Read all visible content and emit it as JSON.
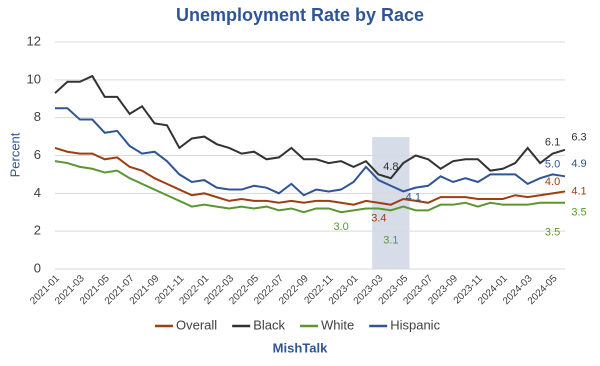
{
  "chart_data": {
    "type": "line",
    "title": "Unemployment Rate by Race",
    "y_label": "Percent",
    "footer": "MishTalk",
    "categories": [
      "2021-01",
      null,
      "2021-03",
      null,
      "2021-05",
      null,
      "2021-07",
      null,
      "2021-09",
      null,
      "2021-11",
      null,
      "2022-01",
      null,
      "2022-03",
      null,
      "2022-05",
      null,
      "2022-07",
      null,
      "2022-09",
      null,
      "2022-11",
      null,
      "2023-01",
      null,
      "2023-03",
      null,
      "2023-05",
      null,
      "2023-07",
      null,
      "2023-09",
      null,
      "2023-11",
      null,
      "2024-01",
      null,
      "2024-03",
      null,
      "2024-05",
      null
    ],
    "ylim": [
      0,
      12
    ],
    "yticks": [
      0,
      2,
      4,
      6,
      8,
      10,
      12
    ],
    "grid": true,
    "legend": "bottom",
    "highlight_range": [
      "2023-03",
      "2023-05"
    ],
    "highlight_color": "#d6dce8",
    "series": [
      {
        "name": "Overall",
        "color": "#9c3f12",
        "values": [
          6.4,
          6.2,
          6.1,
          6.1,
          5.8,
          5.9,
          5.4,
          5.2,
          4.8,
          4.5,
          4.2,
          3.9,
          4.0,
          3.8,
          3.6,
          3.7,
          3.6,
          3.6,
          3.5,
          3.6,
          3.5,
          3.6,
          3.6,
          3.5,
          3.4,
          3.6,
          3.5,
          3.4,
          3.7,
          3.6,
          3.5,
          3.8,
          3.8,
          3.8,
          3.7,
          3.7,
          3.7,
          3.9,
          3.8,
          3.9,
          4.0,
          4.1
        ],
        "value_labels": [
          null,
          null,
          null,
          null,
          null,
          null,
          null,
          null,
          null,
          null,
          null,
          null,
          null,
          null,
          null,
          null,
          null,
          null,
          null,
          null,
          null,
          null,
          null,
          null,
          null,
          null,
          null,
          "3.4",
          null,
          null,
          null,
          null,
          null,
          null,
          null,
          null,
          null,
          null,
          null,
          null,
          "4.0",
          "4.1"
        ]
      },
      {
        "name": "Black",
        "color": "#333333",
        "values": [
          9.3,
          9.9,
          9.9,
          10.2,
          9.1,
          9.1,
          8.2,
          8.6,
          7.7,
          7.6,
          6.4,
          6.9,
          7.0,
          6.6,
          6.4,
          6.1,
          6.2,
          5.8,
          5.9,
          6.4,
          5.8,
          5.8,
          5.6,
          5.7,
          5.4,
          5.7,
          5.0,
          4.8,
          5.6,
          6.0,
          5.8,
          5.3,
          5.7,
          5.8,
          5.8,
          5.2,
          5.3,
          5.6,
          6.4,
          5.6,
          6.1,
          6.3
        ],
        "value_labels": [
          null,
          null,
          null,
          null,
          null,
          null,
          null,
          null,
          null,
          null,
          null,
          null,
          null,
          null,
          null,
          null,
          null,
          null,
          null,
          null,
          null,
          null,
          null,
          null,
          null,
          null,
          null,
          "4.8",
          null,
          null,
          null,
          null,
          null,
          null,
          null,
          null,
          null,
          null,
          null,
          null,
          "6.1",
          "6.3"
        ]
      },
      {
        "name": "White",
        "color": "#5b9632",
        "values": [
          5.7,
          5.6,
          5.4,
          5.3,
          5.1,
          5.2,
          4.8,
          4.5,
          4.2,
          3.9,
          3.6,
          3.3,
          3.4,
          3.3,
          3.2,
          3.3,
          3.2,
          3.3,
          3.1,
          3.2,
          3.0,
          3.2,
          3.2,
          3.0,
          3.1,
          3.2,
          3.2,
          3.1,
          3.3,
          3.1,
          3.1,
          3.4,
          3.4,
          3.5,
          3.3,
          3.5,
          3.4,
          3.4,
          3.4,
          3.5,
          3.5,
          3.5
        ],
        "value_labels": [
          null,
          null,
          null,
          null,
          null,
          null,
          null,
          null,
          null,
          null,
          null,
          null,
          null,
          null,
          null,
          null,
          null,
          null,
          null,
          null,
          null,
          null,
          null,
          "3.0",
          null,
          null,
          null,
          "3.1",
          null,
          null,
          null,
          null,
          null,
          null,
          null,
          null,
          null,
          null,
          null,
          null,
          "3.5",
          "3.5"
        ]
      },
      {
        "name": "Hispanic",
        "color": "#2f5597",
        "values": [
          8.5,
          8.5,
          7.9,
          7.9,
          7.2,
          7.3,
          6.5,
          6.1,
          6.2,
          5.7,
          5.0,
          4.6,
          4.7,
          4.3,
          4.2,
          4.2,
          4.4,
          4.3,
          4.0,
          4.5,
          3.9,
          4.2,
          4.1,
          4.2,
          4.6,
          5.4,
          4.7,
          4.4,
          4.1,
          4.3,
          4.4,
          4.9,
          4.6,
          4.8,
          4.6,
          5.0,
          5.0,
          5.0,
          4.5,
          4.8,
          5.0,
          4.9
        ],
        "value_labels": [
          null,
          null,
          null,
          null,
          null,
          null,
          null,
          null,
          null,
          null,
          null,
          null,
          null,
          null,
          null,
          null,
          null,
          null,
          null,
          null,
          null,
          null,
          null,
          null,
          null,
          null,
          null,
          null,
          "4.1",
          null,
          null,
          null,
          null,
          null,
          null,
          null,
          null,
          null,
          null,
          null,
          "5.0",
          "4.9"
        ]
      }
    ]
  }
}
